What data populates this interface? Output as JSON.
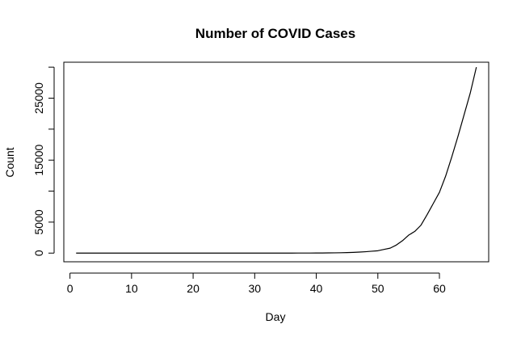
{
  "chart_data": {
    "type": "line",
    "title": "Number of COVID Cases",
    "xlabel": "Day",
    "ylabel": "Count",
    "xlim": [
      -1,
      68
    ],
    "ylim": [
      -1400,
      30800
    ],
    "x_ticks": [
      0,
      10,
      20,
      30,
      40,
      50,
      60
    ],
    "y_ticks": [
      0,
      5000,
      10000,
      15000,
      20000,
      25000,
      30000
    ],
    "y_tick_labels": [
      "0",
      "5000",
      "",
      "15000",
      "",
      "25000",
      ""
    ],
    "grid": false,
    "legend": "none",
    "line_color": "#000000",
    "series": [
      {
        "x": [
          1,
          2,
          3,
          4,
          5,
          6,
          7,
          8,
          9,
          10,
          11,
          12,
          13,
          14,
          15,
          16,
          17,
          18,
          19,
          20,
          21,
          22,
          23,
          24,
          25,
          26,
          27,
          28,
          29,
          30,
          31,
          32,
          33,
          34,
          35,
          36,
          37,
          38,
          39,
          40,
          41,
          42,
          43,
          44,
          45,
          46,
          47,
          48,
          49,
          50,
          51,
          52,
          53,
          54,
          55,
          56,
          57,
          58,
          59,
          60,
          61,
          62,
          63,
          64,
          65,
          66
        ],
        "y": [
          0,
          0,
          0,
          0,
          0,
          0,
          0,
          0,
          0,
          0,
          0,
          0,
          0,
          0,
          0,
          0,
          0,
          0,
          0,
          0,
          0,
          0,
          0,
          0,
          0,
          0,
          0,
          0,
          0,
          0,
          0,
          1,
          1,
          2,
          3,
          4,
          6,
          8,
          10,
          15,
          20,
          30,
          45,
          60,
          80,
          120,
          160,
          220,
          300,
          380,
          600,
          800,
          1300,
          2000,
          2900,
          3500,
          4500,
          6200,
          8000,
          9800,
          12400,
          15500,
          18800,
          22300,
          25800,
          30000
        ]
      }
    ]
  }
}
